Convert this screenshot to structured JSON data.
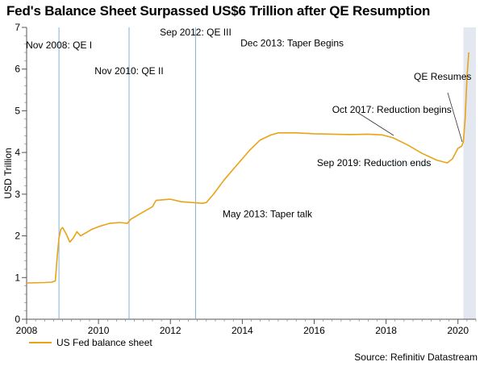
{
  "chart_data": {
    "type": "line",
    "title": "Fed's Balance Sheet Surpassed US$6 Trillion after QE Resumption",
    "xlabel": "",
    "ylabel": "USD Trillion",
    "xlim": [
      2008,
      2020.5
    ],
    "ylim": [
      0,
      7
    ],
    "x_ticks": [
      2008,
      2010,
      2012,
      2014,
      2016,
      2018,
      2020
    ],
    "y_ticks": [
      0,
      1,
      2,
      3,
      4,
      5,
      6,
      7
    ],
    "shaded_region": [
      2020.15,
      2020.5
    ],
    "series": [
      {
        "name": "US Fed balance sheet",
        "color": "#E8A317",
        "x": [
          2008.0,
          2008.5,
          2008.7,
          2008.8,
          2008.85,
          2008.9,
          2008.95,
          2009.0,
          2009.1,
          2009.2,
          2009.3,
          2009.4,
          2009.5,
          2009.6,
          2009.7,
          2009.8,
          2010.0,
          2010.3,
          2010.6,
          2010.8,
          2010.9,
          2011.2,
          2011.5,
          2011.6,
          2012.0,
          2012.3,
          2012.6,
          2012.9,
          2013.0,
          2013.2,
          2013.5,
          2013.9,
          2014.2,
          2014.5,
          2014.8,
          2015.0,
          2015.5,
          2016.0,
          2016.5,
          2017.0,
          2017.5,
          2017.9,
          2018.2,
          2018.6,
          2019.0,
          2019.4,
          2019.7,
          2019.85,
          2020.0,
          2020.1,
          2020.15,
          2020.2,
          2020.25,
          2020.3
        ],
        "values": [
          0.87,
          0.88,
          0.89,
          0.92,
          1.5,
          1.95,
          2.15,
          2.2,
          2.05,
          1.85,
          1.95,
          2.1,
          2.0,
          2.05,
          2.1,
          2.15,
          2.22,
          2.3,
          2.32,
          2.3,
          2.4,
          2.55,
          2.7,
          2.85,
          2.88,
          2.82,
          2.8,
          2.78,
          2.8,
          3.0,
          3.35,
          3.75,
          4.05,
          4.3,
          4.42,
          4.47,
          4.47,
          4.45,
          4.44,
          4.43,
          4.44,
          4.42,
          4.35,
          4.18,
          3.98,
          3.82,
          3.75,
          3.85,
          4.1,
          4.15,
          4.25,
          4.8,
          5.8,
          6.4
        ]
      }
    ],
    "vertical_lines": [
      {
        "x": 2008.9,
        "label": "Nov 2008: QE I"
      },
      {
        "x": 2010.85,
        "label": "Nov 2010: QE II"
      },
      {
        "x": 2012.7,
        "label": "Sep 2012: QE III"
      }
    ],
    "annotations": [
      {
        "text": "Dec 2013: Taper Begins",
        "x": 2013.95,
        "y": 6.55
      },
      {
        "text": "May 2013: Taper talk",
        "x": 2013.45,
        "y": 2.45
      },
      {
        "text": "Oct 2017: Reduction begins",
        "x": 2017.8,
        "y": 4.95
      },
      {
        "text": "Sep 2019: Reduction ends",
        "x": 2019.7,
        "y": 3.75
      },
      {
        "text": "QE Resumes",
        "x": 2020.15,
        "y": 4.2
      }
    ]
  },
  "legend": {
    "label": "US Fed balance sheet"
  },
  "source": "Source: Refinitiv Datastream"
}
